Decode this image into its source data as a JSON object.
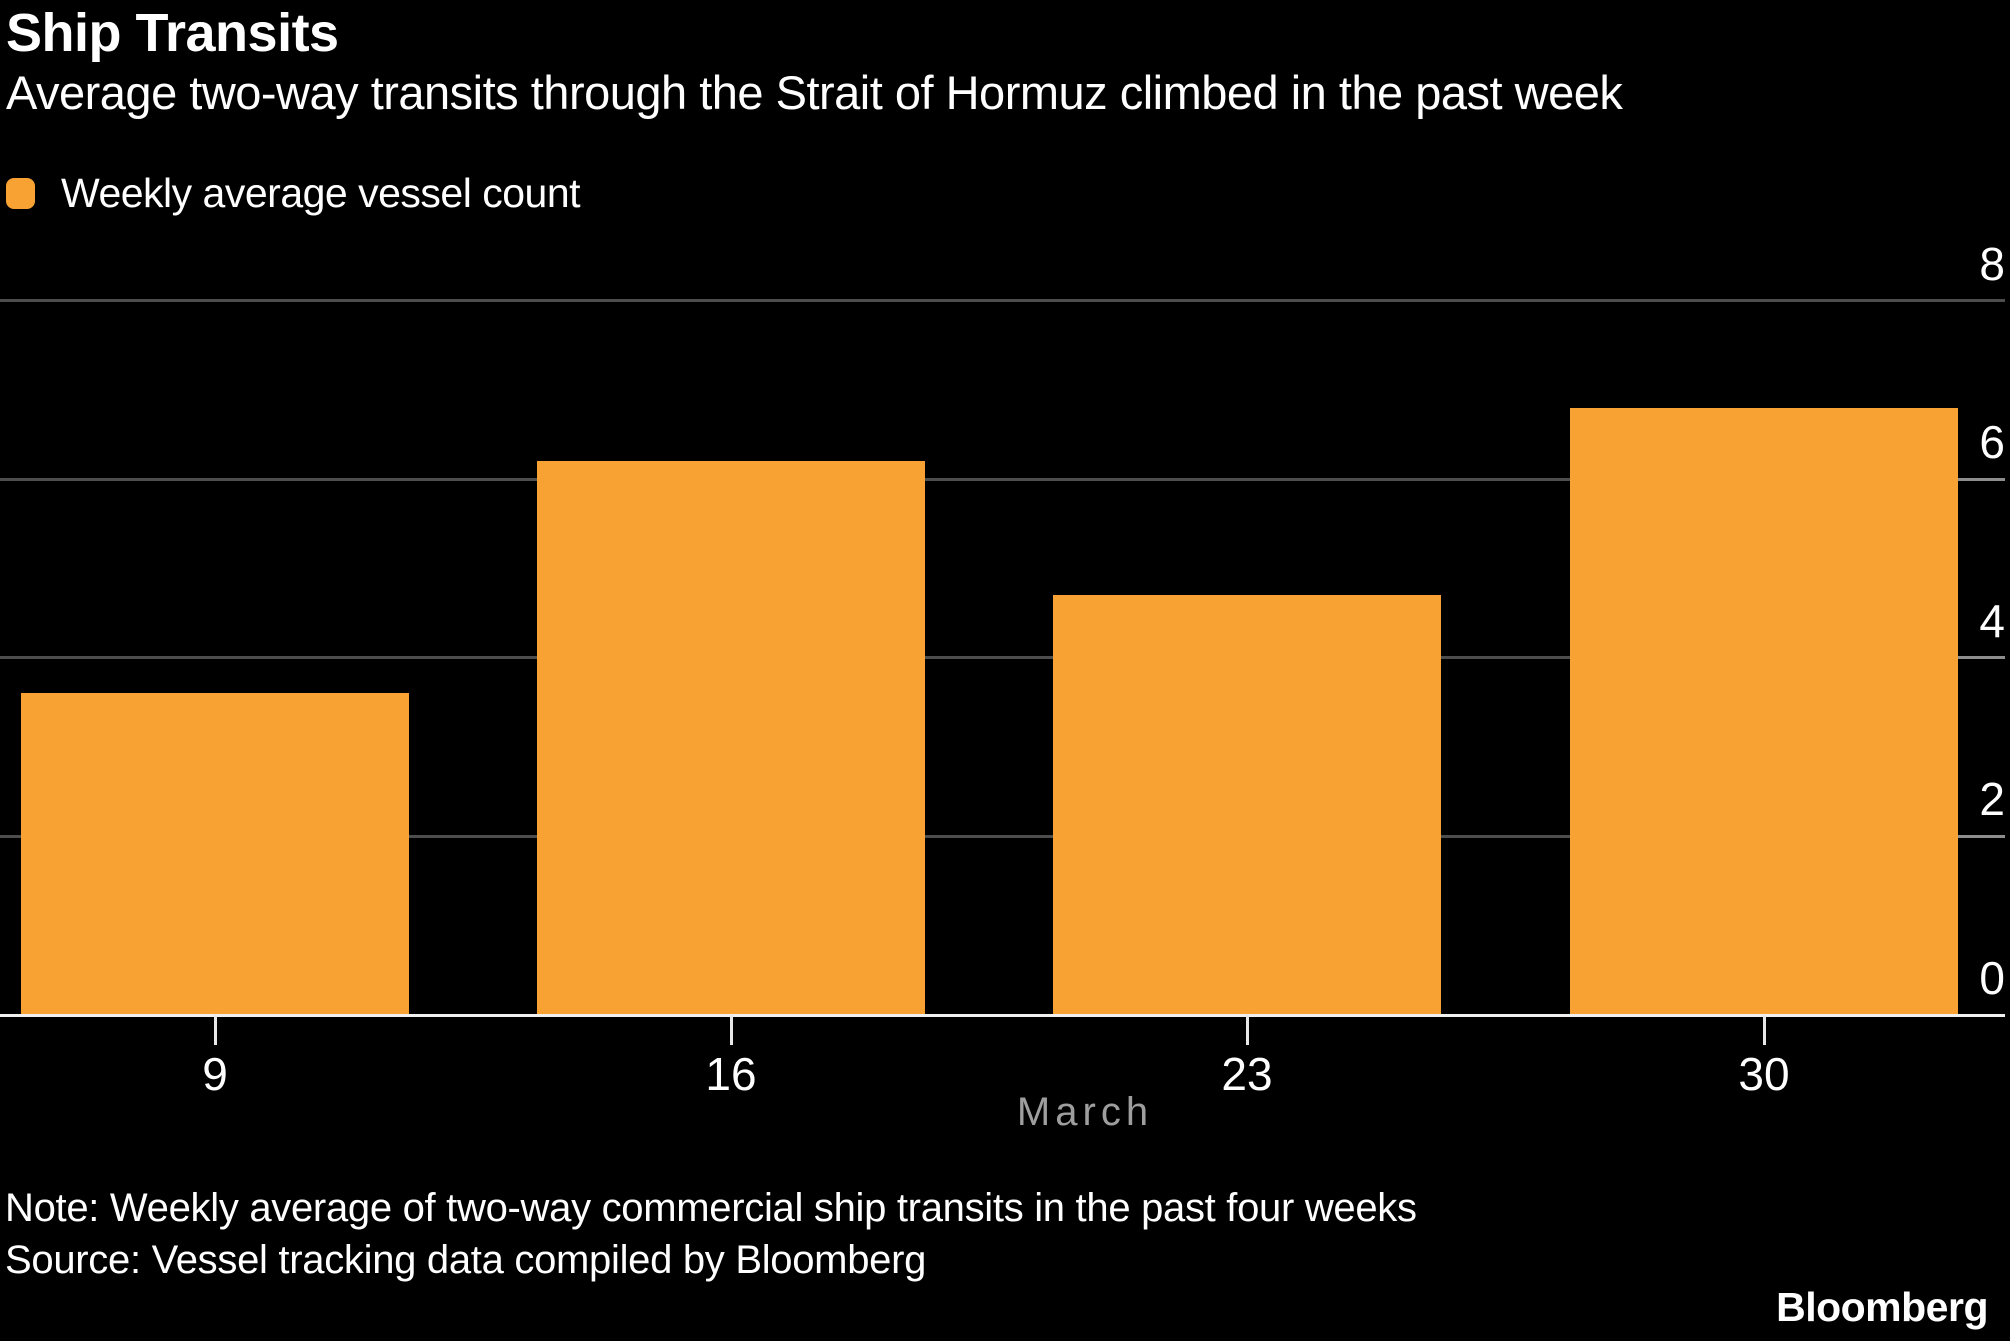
{
  "header": {
    "title": "Ship Transits",
    "subtitle": "Average two-way transits through the Strait of Hormuz climbed in the past week"
  },
  "legend": {
    "label": "Weekly average vessel count",
    "swatch_color": "#F9A234"
  },
  "chart_data": {
    "type": "bar",
    "title": "Ship Transits",
    "subtitle": "Average two-way transits through the Strait of Hormuz climbed in the past week",
    "series_name": "Weekly average vessel count",
    "categories": [
      "9",
      "16",
      "23",
      "30"
    ],
    "values": [
      3.6,
      6.2,
      4.7,
      6.8
    ],
    "xlabel": "March",
    "ylabel": "",
    "ylim": [
      0,
      8
    ],
    "yticks": [
      0,
      2,
      4,
      6,
      8
    ],
    "y_axis_side": "right",
    "grid": true,
    "bar_color": "#F9A234",
    "background_color": "#000000",
    "gridline_color": "#4d4d4d"
  },
  "footer": {
    "note": "Note: Weekly average of two-way commercial ship transits in the past four weeks",
    "source": "Source: Vessel tracking data compiled by Bloomberg",
    "brand": "Bloomberg"
  }
}
